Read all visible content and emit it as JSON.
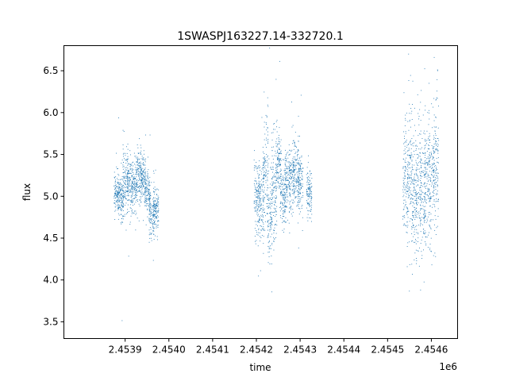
{
  "chart_data": {
    "type": "scatter",
    "title": "1SWASPJ163227.14-332720.1",
    "xlabel": "time",
    "ylabel": "flux",
    "x_offset_label": "1e6",
    "x_tick_values": [
      2.4539,
      2.454,
      2.4541,
      2.4542,
      2.4543,
      2.4544,
      2.4545,
      2.4546
    ],
    "x_tick_labels": [
      "2.4539",
      "2.4540",
      "2.4541",
      "2.4542",
      "2.4543",
      "2.4544",
      "2.4545",
      "2.4546"
    ],
    "y_tick_values": [
      3.5,
      4.0,
      4.5,
      5.0,
      5.5,
      6.0,
      6.5
    ],
    "y_tick_labels": [
      "3.5",
      "4.0",
      "4.5",
      "5.0",
      "5.5",
      "6.0",
      "6.5"
    ],
    "xlim": [
      2.45376,
      2.45466
    ],
    "ylim": [
      3.3,
      6.8
    ],
    "grid": false,
    "marker_color": "#1f77b4",
    "series": [
      {
        "clusters": [
          {
            "x": 2.45388,
            "y": 5.05
          },
          {
            "x": 2.45389,
            "y": 4.98
          },
          {
            "x": 2.4539,
            "y": 5.2
          },
          {
            "x": 2.45391,
            "y": 5.15
          },
          {
            "x": 2.45392,
            "y": 5.1
          },
          {
            "x": 2.45393,
            "y": 5.25
          },
          {
            "x": 2.45394,
            "y": 5.22
          },
          {
            "x": 2.45395,
            "y": 5.05
          },
          {
            "x": 2.45396,
            "y": 4.8
          },
          {
            "x": 2.45397,
            "y": 4.85
          },
          {
            "x": 2.4542,
            "y": 5.0
          },
          {
            "x": 2.45421,
            "y": 4.9
          },
          {
            "x": 2.45422,
            "y": 5.3
          },
          {
            "x": 2.45423,
            "y": 4.8
          },
          {
            "x": 2.45424,
            "y": 5.05
          },
          {
            "x": 2.45425,
            "y": 5.4
          },
          {
            "x": 2.45426,
            "y": 5.0
          },
          {
            "x": 2.45427,
            "y": 5.2
          },
          {
            "x": 2.45428,
            "y": 5.25
          },
          {
            "x": 2.45429,
            "y": 5.3
          },
          {
            "x": 2.4543,
            "y": 5.15
          },
          {
            "x": 2.45432,
            "y": 5.05
          },
          {
            "x": 2.45454,
            "y": 5.2
          },
          {
            "x": 2.45455,
            "y": 5.3
          },
          {
            "x": 2.45456,
            "y": 5.0
          },
          {
            "x": 2.45457,
            "y": 5.1
          },
          {
            "x": 2.45458,
            "y": 5.0
          },
          {
            "x": 2.45459,
            "y": 5.25
          },
          {
            "x": 2.4546,
            "y": 5.2
          },
          {
            "x": 2.45461,
            "y": 5.4
          }
        ],
        "spread": [
          [
            0.12,
            0.12,
            0.18,
            0.16,
            0.15,
            0.16,
            0.14,
            0.12,
            0.15,
            0.14,
            0.22,
            0.25,
            0.35,
            0.3,
            0.3,
            0.2,
            0.18,
            0.18,
            0.2,
            0.2,
            0.18,
            0.15,
            0.35,
            0.4,
            0.35,
            0.4,
            0.35,
            0.4,
            0.4,
            0.45
          ]
        ]
      }
    ]
  }
}
